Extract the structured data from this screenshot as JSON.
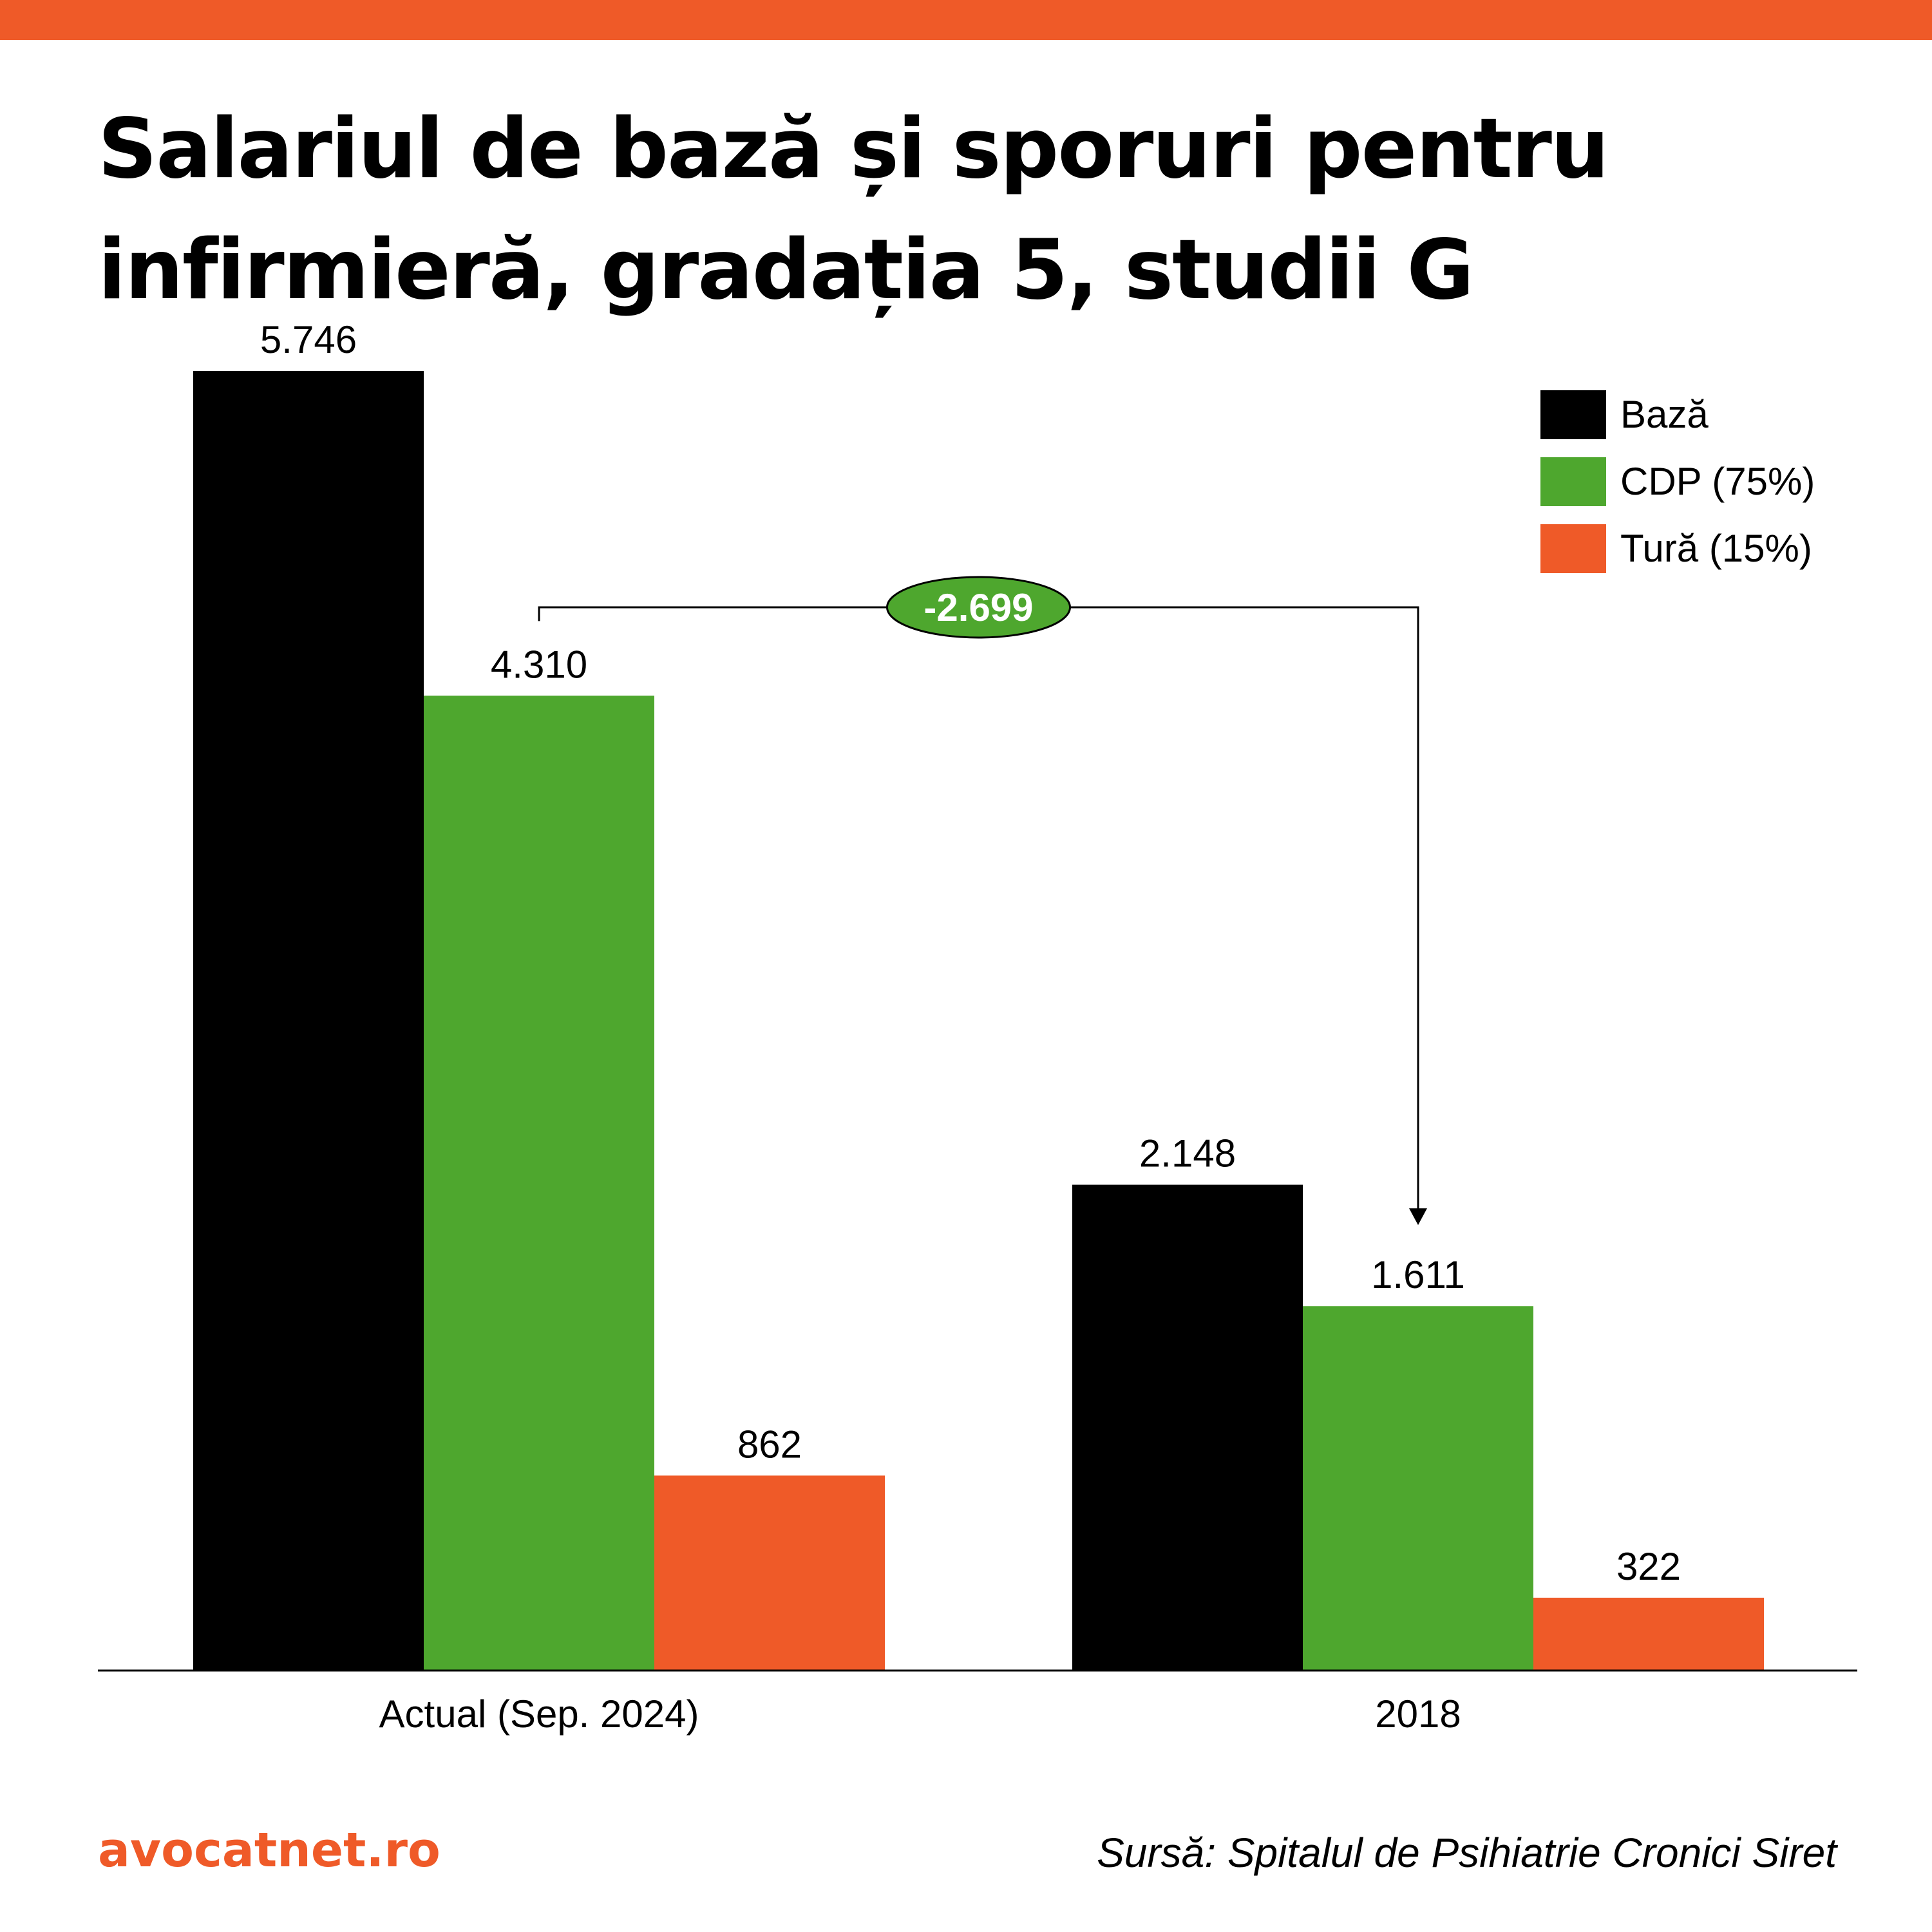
{
  "header": {
    "title": "Salariul de bază și sporuri pentru infirmieră, gradația 5, studii G"
  },
  "colors": {
    "accent": "#ef5a28",
    "baza": "#000000",
    "cdp": "#4ea72e",
    "tura": "#ef5a28"
  },
  "chart_data": {
    "type": "bar",
    "title": "Salariul de bază și sporuri pentru infirmieră, gradația 5, studii G",
    "xlabel": "",
    "ylabel": "",
    "categories": [
      "Actual (Sep. 2024)",
      "2018"
    ],
    "series": [
      {
        "name": "Bază",
        "values": [
          5746,
          2148
        ],
        "labels": [
          "5.746",
          "2.148"
        ],
        "color": "#000000"
      },
      {
        "name": "CDP (75%)",
        "values": [
          4310,
          1611
        ],
        "labels": [
          "4.310",
          "1.611"
        ],
        "color": "#4ea72e"
      },
      {
        "name": "Tură (15%)",
        "values": [
          862,
          322
        ],
        "labels": [
          "862",
          "322"
        ],
        "color": "#ef5a28"
      }
    ],
    "ylim": [
      0,
      5746
    ],
    "grid": false,
    "legend": "top-right",
    "annotation": {
      "text": "-2.699",
      "from": {
        "category": 0,
        "series": 1
      },
      "to": {
        "category": 1,
        "series": 1
      }
    }
  },
  "footer": {
    "brand": "avocatnet.ro",
    "source": "Sursă: Spitalul de Psihiatrie Cronici Siret"
  }
}
